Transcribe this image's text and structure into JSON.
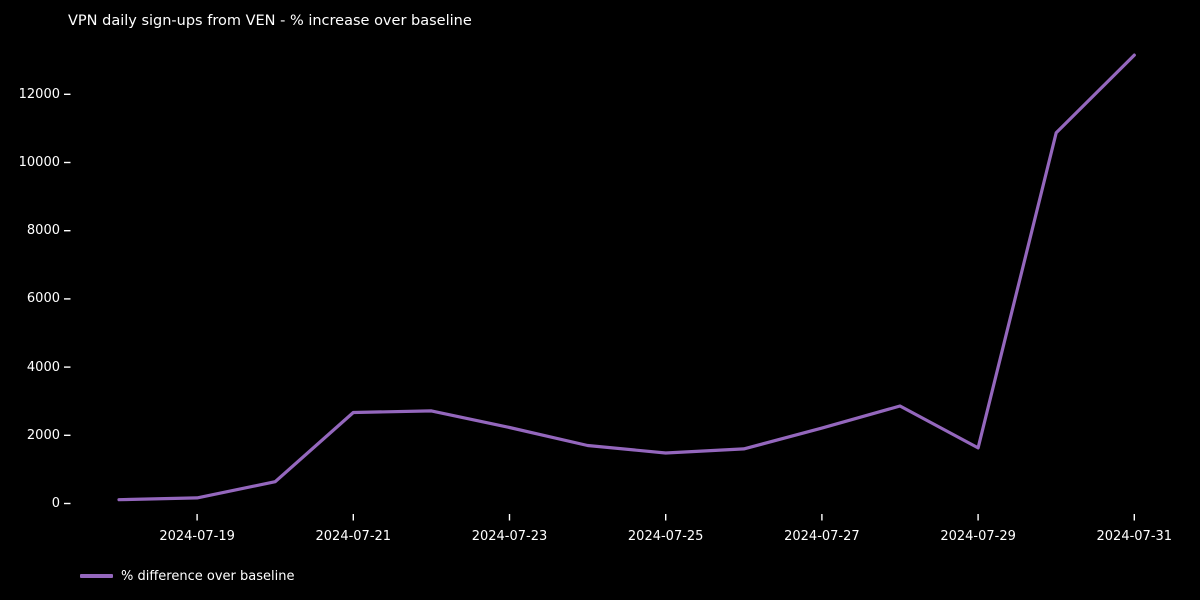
{
  "chart_data": {
    "type": "line",
    "title": "VPN daily sign-ups from VEN - % increase over baseline",
    "x": [
      "2024-07-18",
      "2024-07-19",
      "2024-07-20",
      "2024-07-21",
      "2024-07-22",
      "2024-07-23",
      "2024-07-24",
      "2024-07-25",
      "2024-07-26",
      "2024-07-27",
      "2024-07-28",
      "2024-07-29",
      "2024-07-30",
      "2024-07-31"
    ],
    "series": [
      {
        "name": "% difference over baseline",
        "values": [
          110,
          165,
          640,
          2670,
          2715,
          2230,
          1700,
          1480,
          1600,
          2210,
          2860,
          1630,
          10870,
          13150
        ]
      }
    ],
    "xlabel": "",
    "ylabel": "",
    "yticks": [
      0,
      2000,
      4000,
      6000,
      8000,
      10000,
      12000
    ],
    "xtick_labels": [
      "2024-07-19",
      "2024-07-21",
      "2024-07-23",
      "2024-07-25",
      "2024-07-27",
      "2024-07-29",
      "2024-07-31"
    ],
    "ylim": [
      -550,
      13800
    ],
    "grid": false,
    "legend_position": "lower-left",
    "style": "dark-background",
    "colors": {
      "background": "#000000",
      "text": "#ffffff",
      "line": "#9467bd",
      "tick": "#ffffff"
    }
  }
}
